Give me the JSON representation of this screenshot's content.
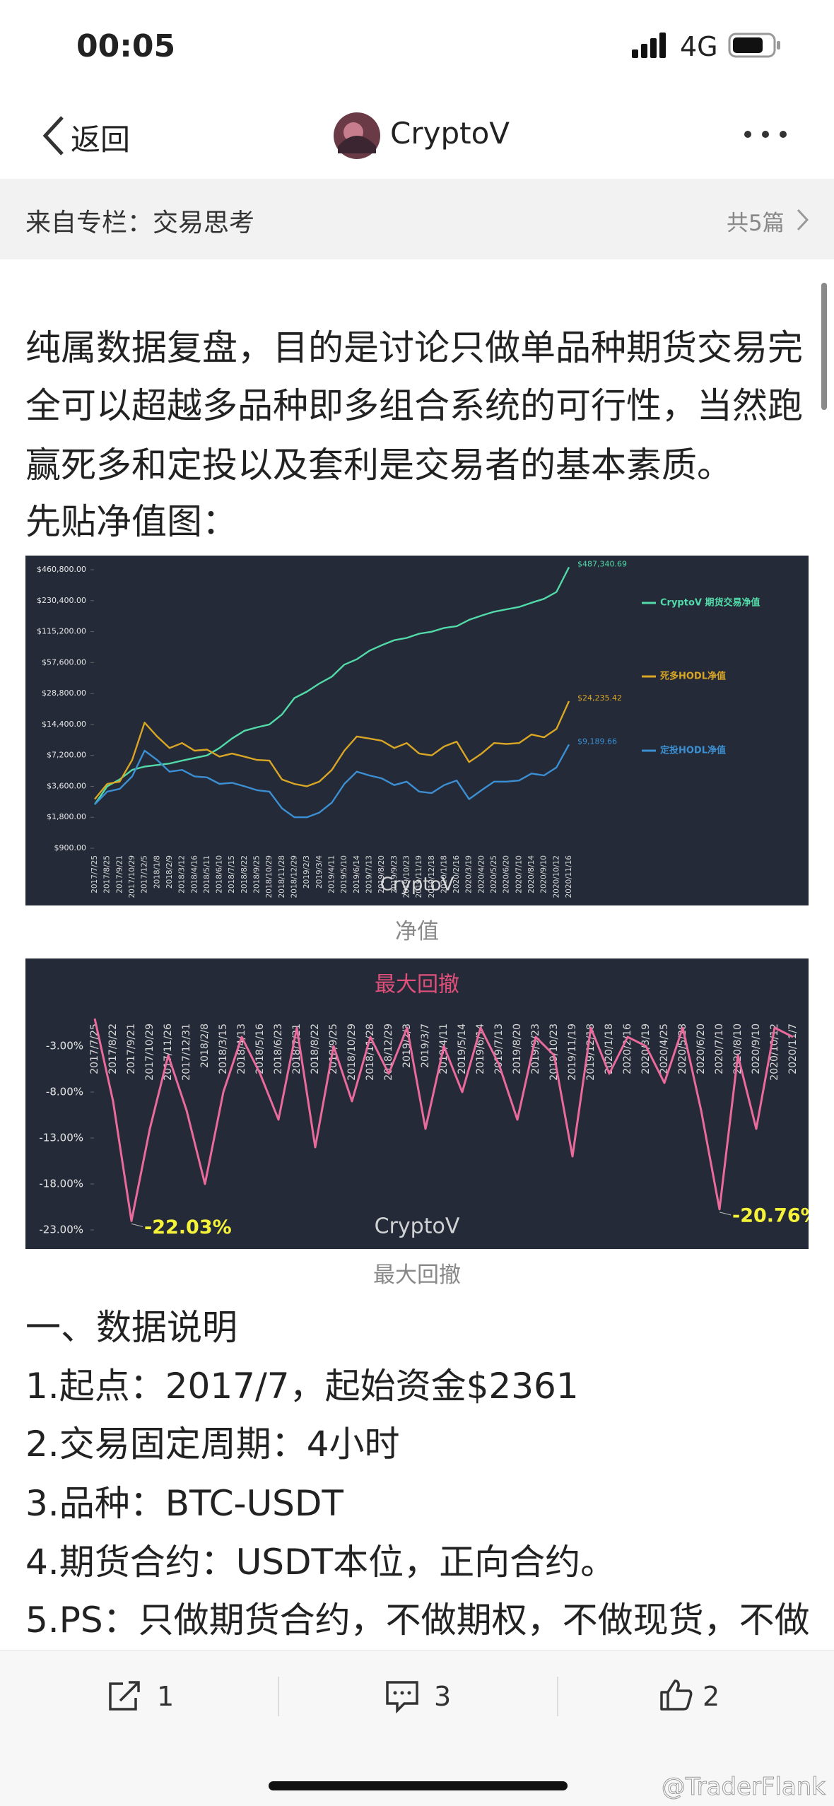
{
  "status_bar": {
    "time": "00:05",
    "network": "4G"
  },
  "nav": {
    "back": "返回",
    "title": "CryptoV"
  },
  "column": {
    "label": "来自专栏：交易思考",
    "count": "共5篇"
  },
  "intro": {
    "lines": [
      "纯属数据复盘，目的是讨论只做单品种期货交易完",
      "全可以超越多品种即多组合系统的可行性，当然跑",
      "赢死多和定投以及套利是交易者的基本素质。"
    ],
    "subheading": "先贴净值图："
  },
  "chart_data": [
    {
      "type": "line",
      "log_y": true,
      "legend": "right",
      "watermark": "CryptoV",
      "categories": [
        "2017/7/25",
        "2017/8/25",
        "2017/9/21",
        "2017/10/29",
        "2017/12/5",
        "2018/1/8",
        "2018/2/9",
        "2018/3/12",
        "2018/4/16",
        "2018/5/11",
        "2018/6/10",
        "2018/7/15",
        "2018/8/22",
        "2018/9/25",
        "2018/10/29",
        "2018/11/28",
        "2018/12/29",
        "2019/2/3",
        "2019/3/4",
        "2019/4/11",
        "2019/5/10",
        "2019/6/14",
        "2019/7/13",
        "2019/8/20",
        "2019/9/23",
        "2019/10/23",
        "2019/11/19",
        "2019/12/18",
        "2020/1/18",
        "2020/2/16",
        "2020/3/19",
        "2020/4/20",
        "2020/5/25",
        "2020/6/20",
        "2020/7/10",
        "2020/8/14",
        "2020/9/10",
        "2020/10/12",
        "2020/11/16"
      ],
      "series": [
        {
          "name": "CryptoV 期货交易净值",
          "color": "#52dba9",
          "values": [
            2400,
            3600,
            4200,
            5200,
            5600,
            5800,
            6000,
            6400,
            6800,
            7200,
            8500,
            10500,
            12500,
            13500,
            14400,
            18000,
            26000,
            30000,
            36000,
            42000,
            55000,
            62000,
            75000,
            85000,
            95000,
            100000,
            110000,
            115000,
            125000,
            130000,
            150000,
            165000,
            180000,
            190000,
            200000,
            220000,
            240000,
            280000,
            487340.69
          ],
          "value_labels": [
            null,
            null,
            null,
            null,
            null,
            null,
            null,
            null,
            null,
            null,
            null,
            null,
            null,
            null,
            null,
            null,
            null,
            null,
            null,
            null,
            null,
            null,
            null,
            null,
            null,
            null,
            null,
            null,
            null,
            null,
            null,
            null,
            null,
            null,
            null,
            null,
            null,
            null,
            "$487,340.69"
          ]
        },
        {
          "name": "死多HODL净值",
          "color": "#d9a625",
          "values": [
            2700,
            3800,
            4000,
            6500,
            15000,
            11000,
            8500,
            9500,
            8000,
            8200,
            7000,
            7500,
            7000,
            6500,
            6400,
            4200,
            3800,
            3600,
            4000,
            5200,
            8000,
            11000,
            10500,
            10000,
            8500,
            9500,
            7500,
            7200,
            8800,
            9800,
            6200,
            7500,
            9500,
            9300,
            9500,
            11500,
            10800,
            13000,
            24235.42
          ],
          "value_labels": [
            null,
            null,
            null,
            null,
            null,
            null,
            null,
            null,
            null,
            null,
            null,
            null,
            null,
            null,
            null,
            null,
            null,
            null,
            null,
            null,
            null,
            null,
            null,
            null,
            null,
            null,
            null,
            null,
            null,
            null,
            null,
            null,
            null,
            null,
            null,
            null,
            null,
            null,
            "$24,235.42"
          ]
        },
        {
          "name": "定投HODL净值",
          "color": "#3b8fd2",
          "values": [
            2400,
            3200,
            3400,
            4500,
            8000,
            6500,
            5000,
            5200,
            4500,
            4400,
            3800,
            3900,
            3600,
            3300,
            3200,
            2200,
            1800,
            1800,
            2000,
            2500,
            3800,
            5000,
            4600,
            4300,
            3700,
            4000,
            3200,
            3100,
            3700,
            4100,
            2700,
            3300,
            4000,
            4000,
            4100,
            4800,
            4600,
            5500,
            9189.66
          ],
          "value_labels": [
            null,
            null,
            null,
            null,
            null,
            null,
            null,
            null,
            null,
            null,
            null,
            null,
            null,
            null,
            null,
            null,
            null,
            null,
            null,
            null,
            null,
            null,
            null,
            null,
            null,
            null,
            null,
            null,
            null,
            null,
            null,
            null,
            null,
            null,
            null,
            null,
            null,
            null,
            "$9,189.66"
          ]
        }
      ],
      "ylim": [
        900,
        460800
      ],
      "yticks": [
        {
          "value": 900,
          "label": "$900.00"
        },
        {
          "value": 1800,
          "label": "$1,800.00"
        },
        {
          "value": 3600,
          "label": "$3,600.00"
        },
        {
          "value": 7200,
          "label": "$7,200.00"
        },
        {
          "value": 14400,
          "label": "$14,400.00"
        },
        {
          "value": 28800,
          "label": "$28,800.00"
        },
        {
          "value": 57600,
          "label": "$57,600.00"
        },
        {
          "value": 115200,
          "label": "$115,200.00"
        },
        {
          "value": 230400,
          "label": "$230,400.00"
        },
        {
          "value": 460800,
          "label": "$460,800.00"
        }
      ]
    },
    {
      "type": "line",
      "title": "最大回撤",
      "watermark": "CryptoV",
      "categories": [
        "2017/7/25",
        "2017/8/22",
        "2017/9/21",
        "2017/10/29",
        "2017/11/26",
        "2017/12/31",
        "2018/2/8",
        "2018/3/15",
        "2018/4/13",
        "2018/5/16",
        "2018/6/23",
        "2018/7/21",
        "2018/8/22",
        "2018/9/25",
        "2018/10/29",
        "2018/11/28",
        "2018/12/29",
        "2019/2/3",
        "2019/3/7",
        "2019/4/11",
        "2019/5/14",
        "2019/6/14",
        "2019/7/13",
        "2019/8/20",
        "2019/9/23",
        "2019/10/23",
        "2019/11/19",
        "2019/12/18",
        "2020/1/18",
        "2020/2/16",
        "2020/3/19",
        "2020/4/25",
        "2020/5/28",
        "2020/6/20",
        "2020/7/10",
        "2020/8/10",
        "2020/9/10",
        "2020/10/12",
        "2020/11/7"
      ],
      "series": [
        {
          "color": "#ea6a9c",
          "values": [
            0,
            -9,
            -22.03,
            -12,
            -4,
            -10,
            -18,
            -8,
            -2,
            -6,
            -11,
            -1,
            -14,
            -3,
            -9,
            -2,
            -6,
            -1,
            -12,
            -3,
            -8,
            -1,
            -5,
            -11,
            -2,
            -4,
            -15,
            -1,
            -6,
            -2,
            -3,
            -7,
            -1,
            -10,
            -20.76,
            -4,
            -12,
            -1,
            -2
          ],
          "value_labels": [
            null,
            null,
            "-22.03%",
            null,
            null,
            null,
            null,
            null,
            null,
            null,
            null,
            null,
            null,
            null,
            null,
            null,
            null,
            null,
            null,
            null,
            null,
            null,
            null,
            null,
            null,
            null,
            null,
            null,
            null,
            null,
            null,
            null,
            null,
            null,
            "-20.76%",
            null,
            null,
            null,
            null
          ]
        }
      ],
      "ylim": [
        -23,
        0
      ],
      "yticks": [
        {
          "value": -3,
          "label": "-3.00%"
        },
        {
          "value": -8,
          "label": "-8.00%"
        },
        {
          "value": -13,
          "label": "-13.00%"
        },
        {
          "value": -18,
          "label": "-18.00%"
        },
        {
          "value": -23,
          "label": "-23.00%"
        }
      ]
    }
  ],
  "captions": [
    "净值",
    "最大回撤"
  ],
  "section": {
    "heading": "一、数据说明",
    "items": [
      "1.起点：2017/7，起始资金$2361",
      "2.交易固定周期：4小时",
      "3.品种：BTC-USDT",
      "4.期货合约：USDT本位，正向合约。",
      "5.PS：只做期货合约，不做期权，不做现货，不做"
    ]
  },
  "actions": {
    "share": 1,
    "comment": 3,
    "like": 2
  },
  "watermark": "@TraderFlank"
}
